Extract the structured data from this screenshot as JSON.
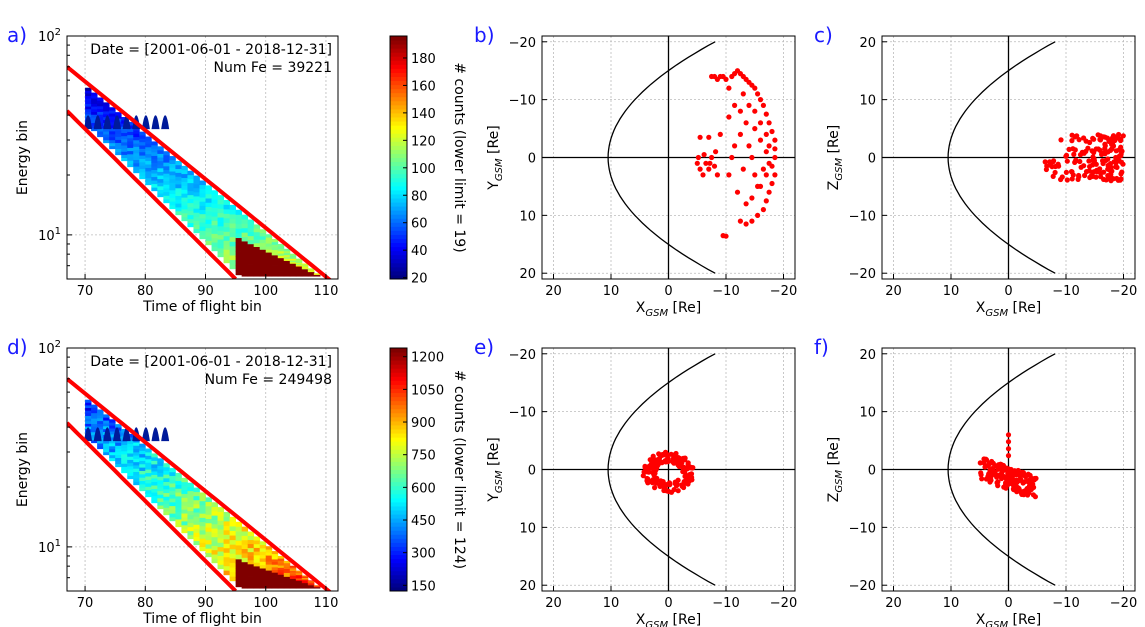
{
  "chart_data": [
    {
      "panel": "a)",
      "type": "heatmap",
      "annotation": [
        "Date = [2001-06-01 - 2018-12-31]",
        "Num Fe = 39221"
      ],
      "xlabel": "Time of flight bin",
      "ylabel": "Energy bin",
      "xlim": [
        67,
        112
      ],
      "ylim": [
        6,
        100
      ],
      "yscale": "log",
      "xticks": [
        "70",
        "80",
        "90",
        "100",
        "110"
      ],
      "yticks": [
        "10^1",
        "10^2"
      ],
      "grid": true,
      "colormap": "jet",
      "colorbar": {
        "label": "# counts (lower limit = 19)",
        "range": [
          19,
          196
        ],
        "ticks": [
          "20",
          "40",
          "60",
          "80",
          "100",
          "120",
          "140",
          "160",
          "180"
        ]
      },
      "cut_lines": [
        {
          "color": "#ff0000",
          "points": [
            [
              67,
              70
            ],
            [
              112,
              5.5
            ]
          ]
        },
        {
          "color": "#ff0000",
          "points": [
            [
              67,
              42
            ],
            [
              95,
              6
            ]
          ]
        }
      ],
      "level": "low"
    },
    {
      "panel": "b)",
      "type": "scatter",
      "xlabel": "X_GSM [Re]",
      "ylabel": "Y_GSM [Re]",
      "xlim": [
        22,
        -22
      ],
      "ylim": [
        -21,
        21
      ],
      "yinverted": true,
      "xticks": [
        "20",
        "10",
        "0",
        "−10",
        "−20"
      ],
      "yticks": [
        "−20",
        "−10",
        "0",
        "10",
        "20"
      ],
      "grid": true,
      "magnetopause": true,
      "point_color": "#ff0000",
      "cluster": {
        "x_range": [
          -20,
          -5
        ],
        "y_range": [
          -15,
          14
        ]
      },
      "points": [
        [
          -5.5,
          -3.5
        ],
        [
          -7,
          -3.5
        ],
        [
          -7.5,
          -14
        ],
        [
          -8,
          -14
        ],
        [
          -8.5,
          -13.5
        ],
        [
          -9,
          -14
        ],
        [
          -9.5,
          -14
        ],
        [
          -10,
          -13.5
        ],
        [
          -10.5,
          -12
        ],
        [
          -11,
          -14
        ],
        [
          -11.5,
          -14.5
        ],
        [
          -12,
          -15
        ],
        [
          -12.5,
          -14.5
        ],
        [
          -13,
          -14
        ],
        [
          -13.5,
          -13.5
        ],
        [
          -14,
          -13
        ],
        [
          -14.5,
          -12.5
        ],
        [
          -15,
          -12
        ],
        [
          -15.5,
          -11
        ],
        [
          -16,
          -10
        ],
        [
          -16.5,
          -9
        ],
        [
          -17,
          -7.5
        ],
        [
          -17.5,
          -6
        ],
        [
          -18,
          -4.5
        ],
        [
          -18.5,
          -3
        ],
        [
          -18.5,
          -1.5
        ],
        [
          -18.5,
          0
        ],
        [
          -18,
          1.5
        ],
        [
          -18.5,
          3
        ],
        [
          -18,
          4.5
        ],
        [
          -17.5,
          6
        ],
        [
          -17,
          7.5
        ],
        [
          -16.5,
          9
        ],
        [
          -15.5,
          10
        ],
        [
          -14.5,
          11
        ],
        [
          -13.5,
          11.5
        ],
        [
          -12.5,
          11
        ],
        [
          -12,
          6
        ],
        [
          -13,
          2
        ],
        [
          -14,
          -2
        ],
        [
          -15,
          -5
        ],
        [
          -16,
          -3
        ],
        [
          -17,
          -1
        ],
        [
          -16.5,
          2
        ],
        [
          -15.5,
          5
        ],
        [
          -14.5,
          7
        ],
        [
          -13.5,
          8
        ],
        [
          -12.5,
          -4
        ],
        [
          -11.5,
          -2
        ],
        [
          -11,
          0
        ],
        [
          -10.5,
          3
        ],
        [
          -10.5,
          -7
        ],
        [
          -11.5,
          -9
        ],
        [
          -13,
          -11
        ],
        [
          -14,
          -9
        ],
        [
          -15,
          -8
        ],
        [
          -16,
          -6
        ],
        [
          -17,
          -4
        ],
        [
          -17.5,
          -2
        ],
        [
          -17.5,
          1
        ],
        [
          -17,
          3
        ],
        [
          -16,
          5
        ],
        [
          -15,
          3
        ],
        [
          -14.5,
          0
        ],
        [
          -13.5,
          -6
        ],
        [
          -12.5,
          -8
        ],
        [
          -9.5,
          13.5
        ],
        [
          -10,
          13.6
        ],
        [
          -5,
          1
        ],
        [
          -5.5,
          2
        ],
        [
          -6,
          3
        ],
        [
          -6.5,
          1
        ],
        [
          -7,
          2
        ],
        [
          -7.5,
          0
        ],
        [
          -8,
          1.5
        ],
        [
          -8.5,
          3
        ],
        [
          -5.2,
          0
        ],
        [
          -6.2,
          -0.5
        ],
        [
          -7.2,
          1
        ],
        [
          -8.2,
          -1
        ],
        [
          -9,
          -4
        ]
      ]
    },
    {
      "panel": "c)",
      "type": "scatter",
      "xlabel": "X_GSM [Re]",
      "ylabel": "Z_GSM [Re]",
      "xlim": [
        22,
        -22
      ],
      "ylim": [
        -21,
        21
      ],
      "xticks": [
        "20",
        "10",
        "0",
        "−10",
        "−20"
      ],
      "yticks": [
        "20",
        "10",
        "0",
        "−10",
        "−20"
      ],
      "grid": true,
      "magnetopause": true,
      "point_color": "#ff0000",
      "cluster": {
        "x_range": [
          -20,
          -5
        ],
        "z_range": [
          -4,
          4
        ]
      }
    },
    {
      "panel": "d)",
      "type": "heatmap",
      "annotation": [
        "Date = [2001-06-01 - 2018-12-31]",
        "Num Fe = 249498"
      ],
      "xlabel": "Time of flight bin",
      "ylabel": "Energy bin",
      "xlim": [
        67,
        112
      ],
      "ylim": [
        6,
        100
      ],
      "yscale": "log",
      "xticks": [
        "70",
        "80",
        "90",
        "100",
        "110"
      ],
      "yticks": [
        "10^1",
        "10^2"
      ],
      "grid": true,
      "colormap": "jet",
      "colorbar": {
        "label": "# counts (lower limit = 124)",
        "range": [
          124,
          1240
        ],
        "ticks": [
          "150",
          "300",
          "450",
          "600",
          "750",
          "900",
          "1050",
          "1200"
        ]
      },
      "cut_lines": [
        {
          "color": "#ff0000",
          "points": [
            [
              67,
              70
            ],
            [
              112,
              5.5
            ]
          ]
        },
        {
          "color": "#ff0000",
          "points": [
            [
              67,
              42
            ],
            [
              95,
              6
            ]
          ]
        }
      ],
      "level": "high"
    },
    {
      "panel": "e)",
      "type": "scatter",
      "xlabel": "X_GSM [Re]",
      "ylabel": "Y_GSM [Re]",
      "xlim": [
        22,
        -22
      ],
      "ylim": [
        -21,
        21
      ],
      "yinverted": true,
      "xticks": [
        "20",
        "10",
        "0",
        "−10",
        "−20"
      ],
      "yticks": [
        "−20",
        "−10",
        "0",
        "10",
        "20"
      ],
      "grid": true,
      "magnetopause": true,
      "point_color": "#ff0000",
      "cluster": {
        "x_range": [
          -5,
          5
        ],
        "y_range": [
          -5,
          6
        ]
      }
    },
    {
      "panel": "f)",
      "type": "scatter",
      "xlabel": "X_GSM [Re]",
      "ylabel": "Z_GSM [Re]",
      "xlim": [
        22,
        -22
      ],
      "ylim": [
        -21,
        21
      ],
      "xticks": [
        "20",
        "10",
        "0",
        "−10",
        "−20"
      ],
      "yticks": [
        "20",
        "10",
        "0",
        "−10",
        "−20"
      ],
      "grid": true,
      "magnetopause": true,
      "point_color": "#ff0000",
      "cluster": {
        "x_range": [
          -6,
          5
        ],
        "z_range": [
          -4,
          6
        ]
      }
    }
  ]
}
